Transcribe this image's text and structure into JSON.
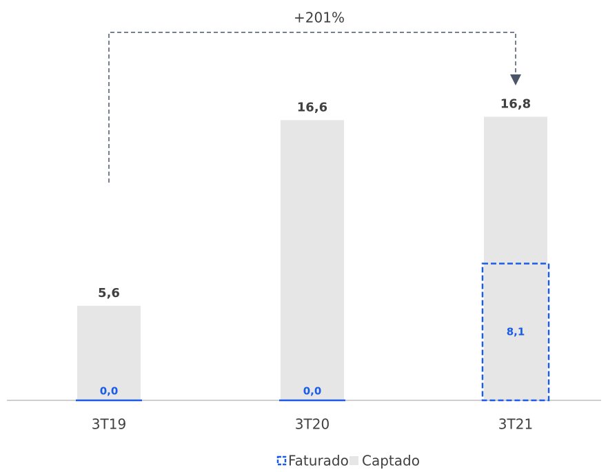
{
  "chart_data": {
    "type": "bar",
    "categories": [
      "3T19",
      "3T20",
      "3T21"
    ],
    "series": [
      {
        "name": "Faturado",
        "color": "#1a5ce6",
        "values": [
          0.0,
          0.0,
          8.1
        ],
        "value_labels": [
          "0,0",
          "0,0",
          "8,1"
        ]
      },
      {
        "name": "Captado",
        "color": "#e6e6e6",
        "values": [
          5.6,
          16.6,
          16.8
        ],
        "value_labels": [
          "5,6",
          "16,6",
          "16,8"
        ]
      }
    ],
    "annotation": "+201%"
  }
}
